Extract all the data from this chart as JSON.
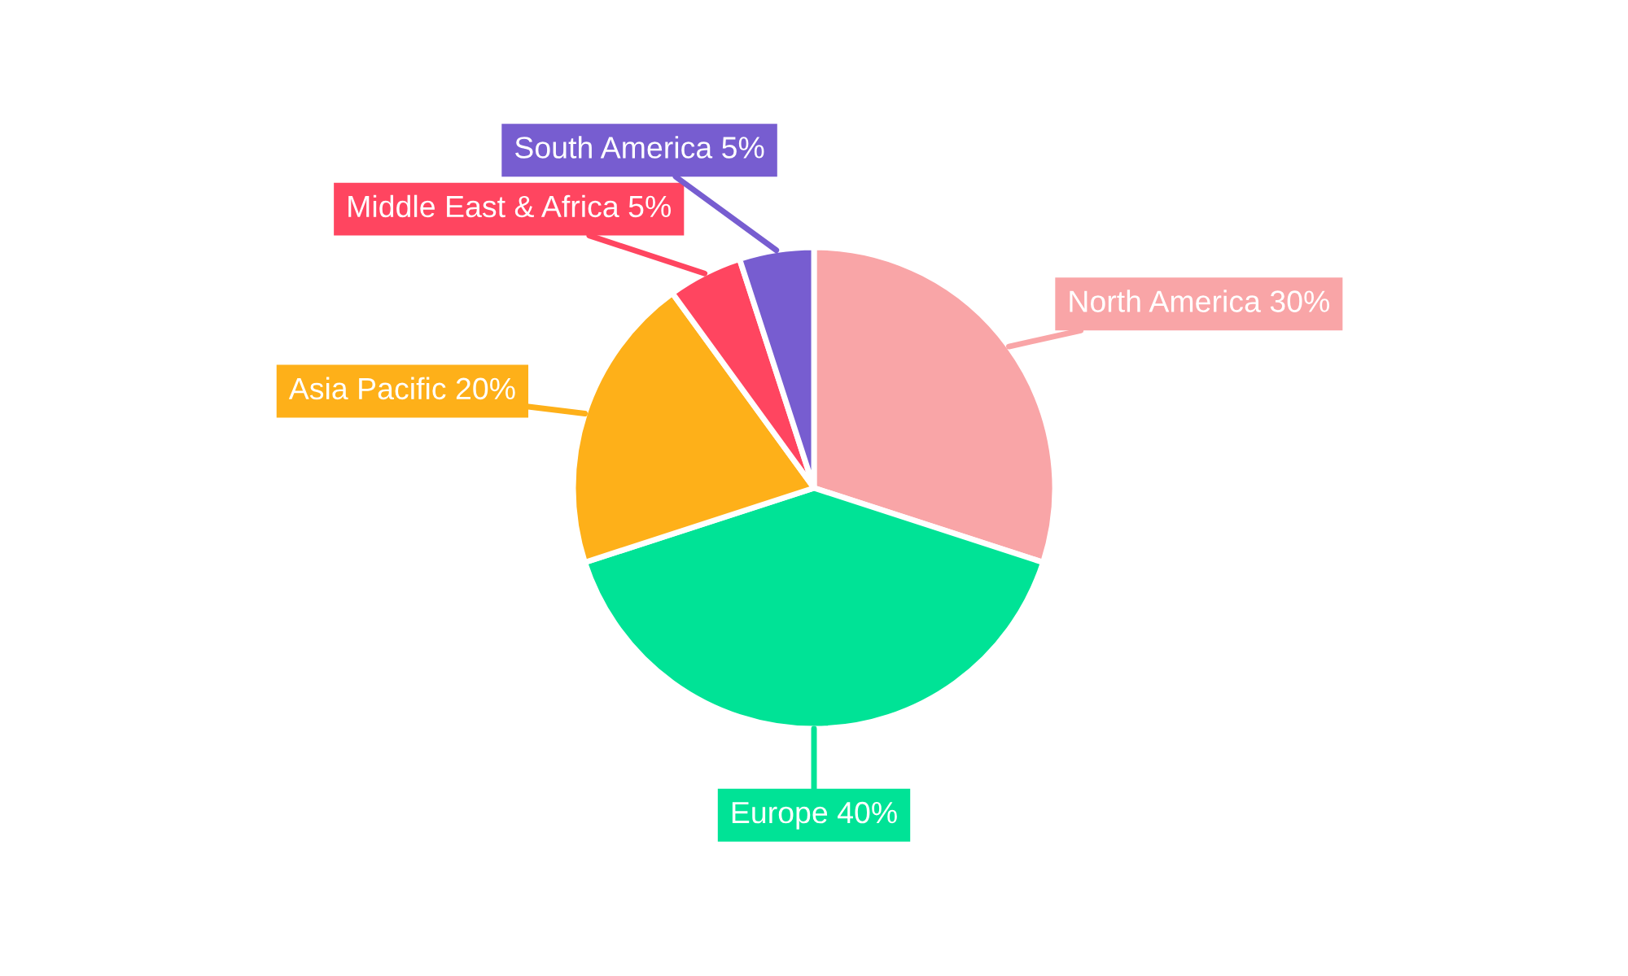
{
  "chart_data": {
    "type": "pie",
    "categories": [
      "North America",
      "Europe",
      "Asia Pacific",
      "Middle East & Africa",
      "South America"
    ],
    "values": [
      30,
      40,
      20,
      5,
      5
    ],
    "value_labels": [
      "30%",
      "40%",
      "20%",
      "5%",
      "5%"
    ],
    "colors": [
      "#f9a5a7",
      "#00e396",
      "#feb019",
      "#ff4560",
      "#775dd0"
    ],
    "legend": false
  }
}
